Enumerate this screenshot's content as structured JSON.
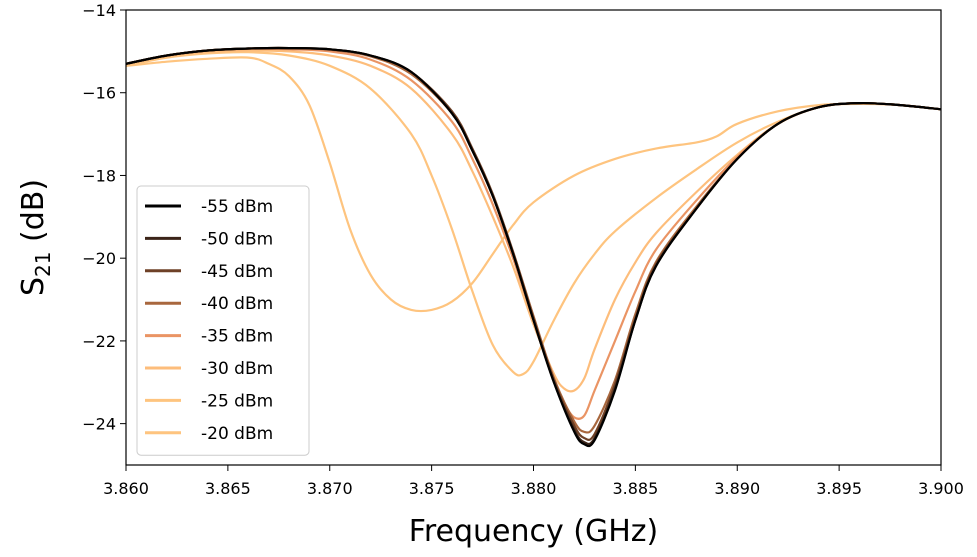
{
  "chart_data": {
    "type": "line",
    "xlabel": "Frequency (GHz)",
    "ylabel_base": "S",
    "ylabel_sub": "21",
    "ylabel_unit": " (dB)",
    "xlim": [
      3.86,
      3.9
    ],
    "ylim": [
      -25.0,
      -14.0
    ],
    "xticks": [
      3.86,
      3.865,
      3.87,
      3.875,
      3.88,
      3.885,
      3.89,
      3.895,
      3.9
    ],
    "xtick_labels": [
      "3.860",
      "3.865",
      "3.870",
      "3.875",
      "3.880",
      "3.885",
      "3.890",
      "3.895",
      "3.900"
    ],
    "yticks": [
      -24,
      -22,
      -20,
      -18,
      -16,
      -14
    ],
    "ytick_labels": [
      "−24",
      "−22",
      "−20",
      "−18",
      "−16",
      "−14"
    ],
    "grid": false,
    "legend_position": "center-left",
    "series": [
      {
        "name": "-55 dBm",
        "color": "#000000",
        "x": [
          3.86,
          3.862,
          3.864,
          3.866,
          3.868,
          3.87,
          3.872,
          3.874,
          3.876,
          3.877,
          3.878,
          3.879,
          3.88,
          3.881,
          3.882,
          3.8825,
          3.883,
          3.884,
          3.885,
          3.886,
          3.888,
          3.89,
          3.892,
          3.894,
          3.896,
          3.898,
          3.9
        ],
        "y": [
          -15.3,
          -15.1,
          -14.98,
          -14.93,
          -14.92,
          -14.95,
          -15.1,
          -15.5,
          -16.5,
          -17.4,
          -18.5,
          -19.9,
          -21.5,
          -23.0,
          -24.2,
          -24.5,
          -24.4,
          -23.2,
          -21.5,
          -20.2,
          -18.8,
          -17.6,
          -16.75,
          -16.35,
          -16.25,
          -16.3,
          -16.4
        ]
      },
      {
        "name": "-50 dBm",
        "color": "#3b2418",
        "x": [
          3.86,
          3.862,
          3.864,
          3.866,
          3.868,
          3.87,
          3.872,
          3.874,
          3.876,
          3.877,
          3.878,
          3.879,
          3.88,
          3.881,
          3.882,
          3.8825,
          3.883,
          3.884,
          3.885,
          3.886,
          3.888,
          3.89,
          3.892,
          3.894,
          3.896,
          3.898,
          3.9
        ],
        "y": [
          -15.3,
          -15.1,
          -14.98,
          -14.93,
          -14.92,
          -14.95,
          -15.1,
          -15.5,
          -16.5,
          -17.4,
          -18.5,
          -19.9,
          -21.5,
          -23.0,
          -24.15,
          -24.45,
          -24.35,
          -23.15,
          -21.5,
          -20.2,
          -18.8,
          -17.6,
          -16.75,
          -16.35,
          -16.25,
          -16.3,
          -16.4
        ]
      },
      {
        "name": "-45 dBm",
        "color": "#6e4127",
        "x": [
          3.86,
          3.862,
          3.864,
          3.866,
          3.868,
          3.87,
          3.872,
          3.874,
          3.876,
          3.877,
          3.878,
          3.879,
          3.88,
          3.881,
          3.882,
          3.8825,
          3.883,
          3.884,
          3.885,
          3.886,
          3.888,
          3.89,
          3.892,
          3.894,
          3.896,
          3.898,
          3.9
        ],
        "y": [
          -15.3,
          -15.1,
          -14.98,
          -14.93,
          -14.92,
          -14.95,
          -15.1,
          -15.5,
          -16.45,
          -17.35,
          -18.45,
          -19.85,
          -21.45,
          -22.95,
          -24.05,
          -24.35,
          -24.25,
          -23.05,
          -21.45,
          -20.15,
          -18.8,
          -17.6,
          -16.75,
          -16.35,
          -16.25,
          -16.3,
          -16.4
        ]
      },
      {
        "name": "-40 dBm",
        "color": "#a8673e",
        "x": [
          3.86,
          3.862,
          3.864,
          3.866,
          3.868,
          3.87,
          3.872,
          3.874,
          3.876,
          3.877,
          3.878,
          3.879,
          3.88,
          3.881,
          3.882,
          3.8825,
          3.883,
          3.884,
          3.885,
          3.886,
          3.888,
          3.89,
          3.892,
          3.894,
          3.896,
          3.898,
          3.9
        ],
        "y": [
          -15.3,
          -15.1,
          -14.98,
          -14.93,
          -14.92,
          -14.96,
          -15.12,
          -15.55,
          -16.5,
          -17.4,
          -18.5,
          -19.85,
          -21.4,
          -22.9,
          -23.95,
          -24.2,
          -24.05,
          -22.95,
          -21.35,
          -20.1,
          -18.75,
          -17.6,
          -16.75,
          -16.35,
          -16.25,
          -16.3,
          -16.4
        ]
      },
      {
        "name": "-35 dBm",
        "color": "#ea9464",
        "x": [
          3.86,
          3.862,
          3.864,
          3.866,
          3.868,
          3.87,
          3.872,
          3.874,
          3.876,
          3.877,
          3.878,
          3.879,
          3.88,
          3.881,
          3.8815,
          3.882,
          3.8825,
          3.883,
          3.884,
          3.885,
          3.886,
          3.888,
          3.89,
          3.892,
          3.894,
          3.896,
          3.898,
          3.9
        ],
        "y": [
          -15.3,
          -15.1,
          -14.98,
          -14.94,
          -14.95,
          -15.0,
          -15.2,
          -15.7,
          -16.7,
          -17.6,
          -18.7,
          -20.0,
          -21.5,
          -22.9,
          -23.5,
          -23.85,
          -23.8,
          -23.2,
          -22.0,
          -20.8,
          -19.8,
          -18.6,
          -17.55,
          -16.75,
          -16.35,
          -16.25,
          -16.3,
          -16.4
        ]
      },
      {
        "name": "-30 dBm",
        "color": "#fdbd7b",
        "x": [
          3.86,
          3.862,
          3.864,
          3.866,
          3.868,
          3.87,
          3.872,
          3.874,
          3.876,
          3.877,
          3.878,
          3.879,
          3.88,
          3.881,
          3.8815,
          3.882,
          3.8825,
          3.883,
          3.884,
          3.885,
          3.886,
          3.888,
          3.89,
          3.892,
          3.894,
          3.896,
          3.898,
          3.9
        ],
        "y": [
          -15.3,
          -15.12,
          -15.02,
          -14.98,
          -15.0,
          -15.1,
          -15.35,
          -15.9,
          -17.0,
          -17.9,
          -19.0,
          -20.2,
          -21.6,
          -22.8,
          -23.15,
          -23.2,
          -22.9,
          -22.2,
          -21.0,
          -20.1,
          -19.4,
          -18.4,
          -17.5,
          -16.75,
          -16.35,
          -16.25,
          -16.3,
          -16.4
        ]
      },
      {
        "name": "-25 dBm",
        "color": "#fec47f",
        "x": [
          3.86,
          3.862,
          3.864,
          3.866,
          3.868,
          3.87,
          3.872,
          3.874,
          3.875,
          3.876,
          3.877,
          3.878,
          3.879,
          3.8795,
          3.88,
          3.881,
          3.882,
          3.883,
          3.884,
          3.886,
          3.888,
          3.89,
          3.892,
          3.894,
          3.896,
          3.898,
          3.9
        ],
        "y": [
          -15.35,
          -15.15,
          -15.05,
          -15.02,
          -15.1,
          -15.35,
          -15.9,
          -17.0,
          -18.0,
          -19.3,
          -20.8,
          -22.1,
          -22.75,
          -22.8,
          -22.5,
          -21.5,
          -20.6,
          -19.9,
          -19.35,
          -18.55,
          -17.85,
          -17.2,
          -16.7,
          -16.35,
          -16.25,
          -16.3,
          -16.4
        ]
      },
      {
        "name": "-20 dBm",
        "color": "#fec47f",
        "x": [
          3.86,
          3.862,
          3.864,
          3.866,
          3.867,
          3.868,
          3.869,
          3.87,
          3.871,
          3.872,
          3.873,
          3.874,
          3.875,
          3.876,
          3.877,
          3.878,
          3.879,
          3.88,
          3.882,
          3.884,
          3.886,
          3.888,
          3.889,
          3.89,
          3.892,
          3.894,
          3.896,
          3.898,
          3.9
        ],
        "y": [
          -15.35,
          -15.25,
          -15.18,
          -15.15,
          -15.3,
          -15.6,
          -16.3,
          -17.7,
          -19.3,
          -20.4,
          -21.0,
          -21.25,
          -21.25,
          -21.05,
          -20.6,
          -19.9,
          -19.2,
          -18.65,
          -18.0,
          -17.6,
          -17.35,
          -17.2,
          -17.05,
          -16.75,
          -16.45,
          -16.3,
          -16.27,
          -16.3,
          -16.4
        ]
      }
    ]
  }
}
